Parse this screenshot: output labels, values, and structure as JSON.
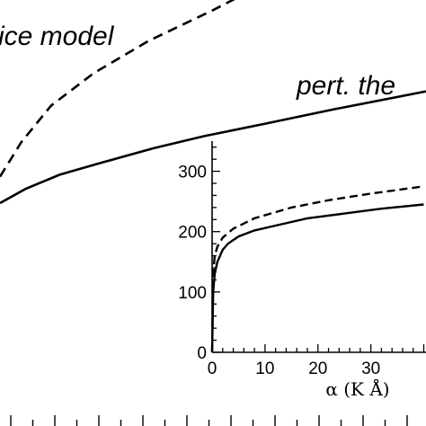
{
  "chart_data": [
    {
      "type": "line",
      "title": "",
      "xlabel": "",
      "ylabel": "",
      "annotations": [
        "ice model",
        "pert. the"
      ],
      "series": [
        {
          "style": "dashed",
          "x": [
            0,
            0.05,
            0.12,
            0.22,
            0.35,
            0.5,
            0.62
          ],
          "y": [
            0.13,
            0.3,
            0.48,
            0.64,
            0.8,
            0.95,
            1.08
          ]
        },
        {
          "style": "solid",
          "x": [
            0,
            0.06,
            0.14,
            0.24,
            0.36,
            0.48,
            0.62,
            0.78,
            1.0
          ],
          "y": [
            0.0,
            0.07,
            0.14,
            0.2,
            0.27,
            0.33,
            0.39,
            0.46,
            0.55
          ]
        }
      ]
    },
    {
      "type": "line",
      "title": "",
      "xlabel": "α (K Å)",
      "ylabel": "",
      "xlim": [
        0,
        40
      ],
      "ylim": [
        0,
        350
      ],
      "xticks": [
        "0",
        "10",
        "20",
        "30"
      ],
      "yticks": [
        "0",
        "100",
        "200",
        "300"
      ],
      "series": [
        {
          "style": "dashed",
          "x": [
            0,
            0.2,
            0.5,
            1,
            2,
            4,
            8,
            15,
            22,
            30,
            40
          ],
          "y": [
            0,
            130,
            160,
            175,
            190,
            205,
            222,
            240,
            252,
            263,
            275
          ]
        },
        {
          "style": "solid",
          "x": [
            0,
            0.2,
            0.5,
            1,
            2,
            3,
            5,
            8,
            12,
            18,
            25,
            32,
            40
          ],
          "y": [
            0,
            100,
            130,
            150,
            170,
            180,
            192,
            202,
            210,
            222,
            230,
            238,
            245
          ]
        }
      ]
    }
  ]
}
